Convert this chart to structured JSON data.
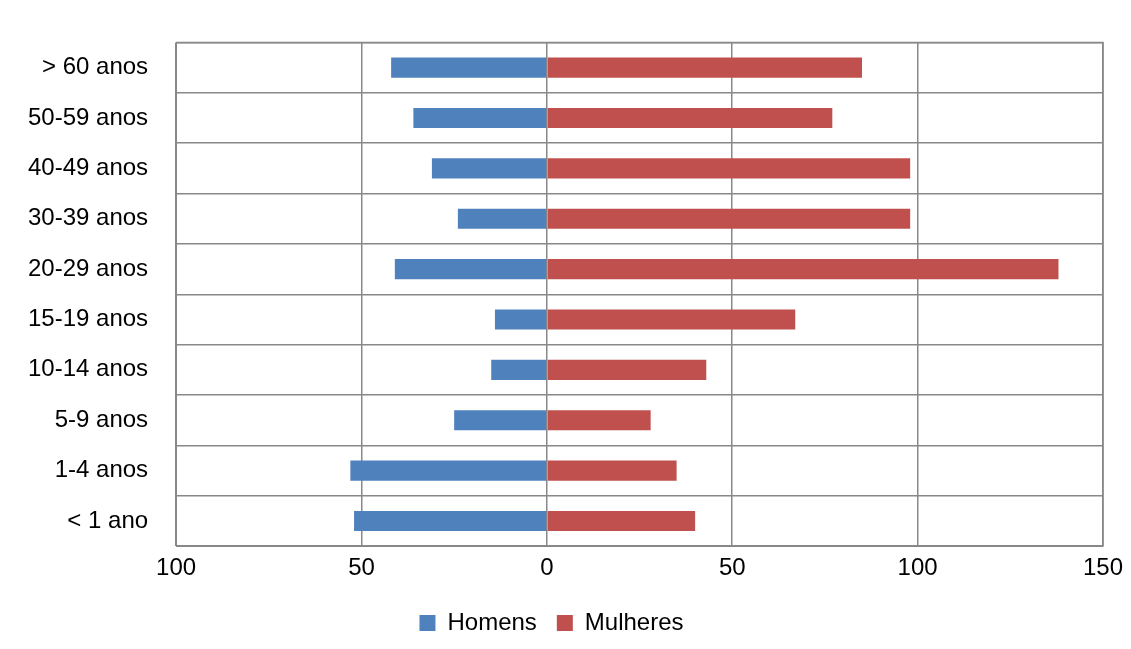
{
  "chart_data": {
    "type": "bar",
    "orientation": "horizontal",
    "stacked": true,
    "categories": [
      "> 60 anos",
      "50-59 anos",
      "40-49 anos",
      "30-39 anos",
      "20-29 anos",
      "15-19 anos",
      "10-14 anos",
      "5-9 anos",
      "1-4 anos",
      "< 1 ano"
    ],
    "series": [
      {
        "name": "Homens",
        "color": "#4f81bd",
        "values": [
          -42,
          -36,
          -31,
          -24,
          -41,
          -14,
          -15,
          -25,
          -53,
          -52
        ]
      },
      {
        "name": "Mulheres",
        "color": "#c0504d",
        "values": [
          85,
          77,
          98,
          98,
          138,
          67,
          43,
          28,
          35,
          40
        ]
      }
    ],
    "xlim": [
      -100,
      150
    ],
    "xticks": [
      {
        "value": -100,
        "label": "100"
      },
      {
        "value": -50,
        "label": "50"
      },
      0,
      50,
      100,
      150
    ],
    "grid": true,
    "legend": "bottom"
  }
}
